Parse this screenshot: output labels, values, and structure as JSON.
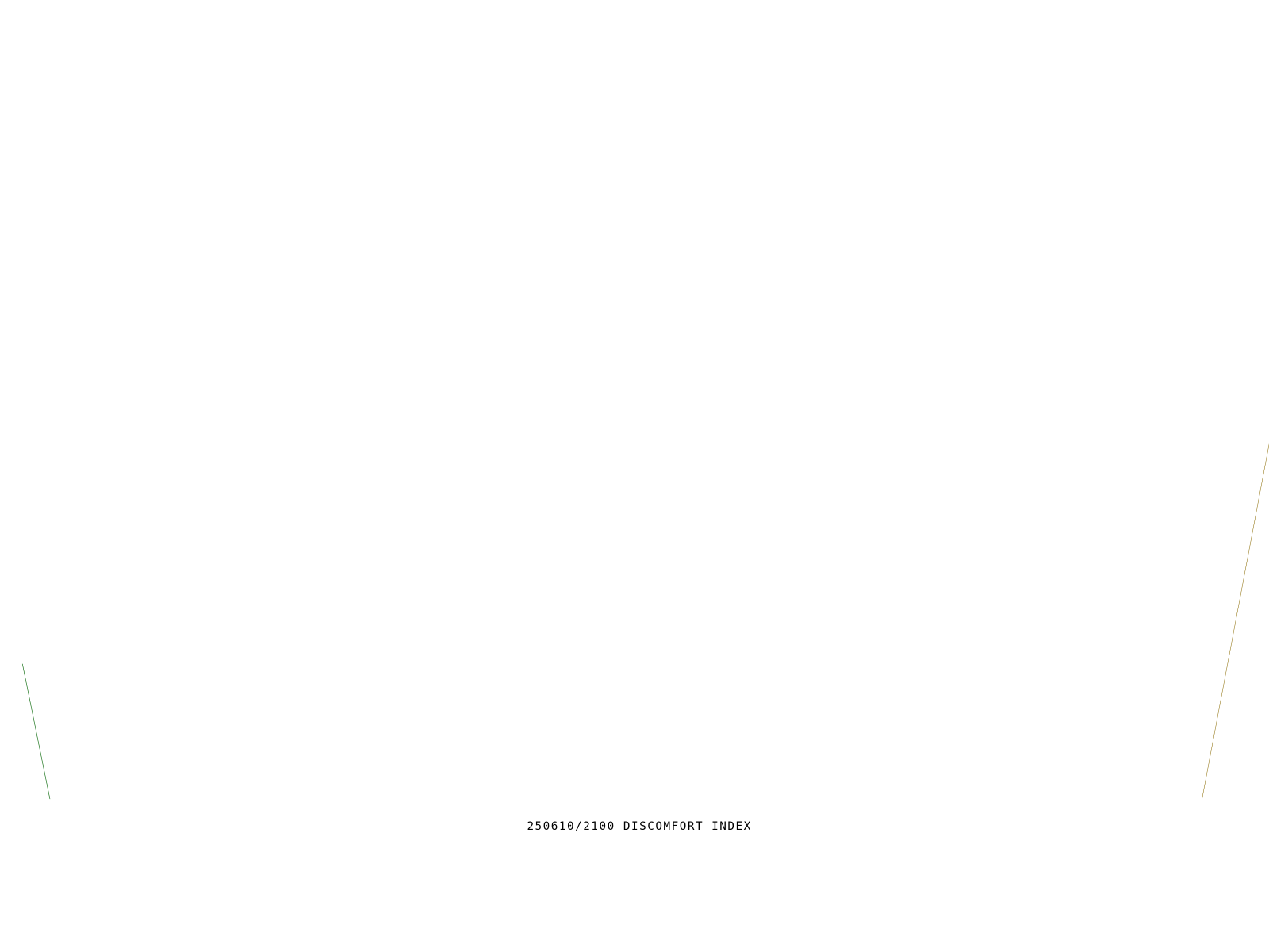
{
  "map": {
    "caption": "250610/2100 DISCOMFORT INDEX"
  }
}
